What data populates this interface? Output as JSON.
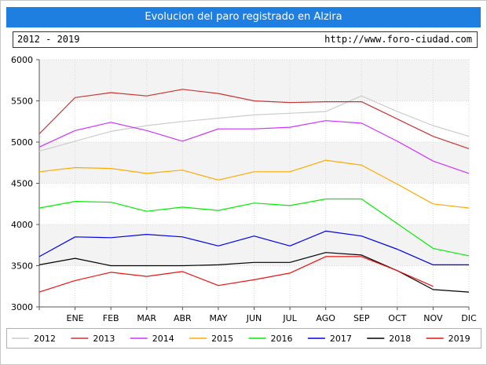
{
  "header": {
    "title": "Evolucion del paro registrado en Alzira",
    "period": "2012 - 2019",
    "url": "http://www.foro-ciudad.com"
  },
  "chart_data": {
    "type": "line",
    "title": "Evolucion del paro registrado en Alzira",
    "categories": [
      "",
      "ENE",
      "FEB",
      "MAR",
      "ABR",
      "MAY",
      "JUN",
      "JUL",
      "AGO",
      "SEP",
      "OCT",
      "NOV",
      "DIC"
    ],
    "ylim": [
      3000,
      6000
    ],
    "yticks": [
      3000,
      3500,
      4000,
      4500,
      5000,
      5500,
      6000
    ],
    "grid": true,
    "legend_position": "bottom",
    "series": [
      {
        "name": "2012",
        "color": "#cccccc",
        "values": [
          4890,
          5010,
          5130,
          5200,
          5250,
          5290,
          5330,
          5350,
          5370,
          5560,
          5370,
          5200,
          5070
        ]
      },
      {
        "name": "2013",
        "color": "#cc3333",
        "values": [
          5100,
          5540,
          5600,
          5560,
          5640,
          5590,
          5500,
          5480,
          5490,
          5490,
          5280,
          5070,
          4920
        ]
      },
      {
        "name": "2014",
        "color": "#cc33ff",
        "values": [
          4940,
          5140,
          5240,
          5140,
          5010,
          5160,
          5160,
          5180,
          5260,
          5230,
          5010,
          4770,
          4620
        ]
      },
      {
        "name": "2015",
        "color": "#ffaa00",
        "values": [
          4640,
          4690,
          4680,
          4620,
          4660,
          4540,
          4640,
          4640,
          4780,
          4720,
          4490,
          4250,
          4200
        ]
      },
      {
        "name": "2016",
        "color": "#00ee00",
        "values": [
          4200,
          4280,
          4270,
          4160,
          4210,
          4170,
          4260,
          4230,
          4310,
          4310,
          4010,
          3710,
          3620
        ]
      },
      {
        "name": "2017",
        "color": "#0000ee",
        "values": [
          3610,
          3850,
          3840,
          3880,
          3850,
          3740,
          3860,
          3740,
          3920,
          3860,
          3700,
          3510,
          3510
        ]
      },
      {
        "name": "2018",
        "color": "#000000",
        "values": [
          3510,
          3590,
          3500,
          3500,
          3500,
          3510,
          3540,
          3540,
          3660,
          3630,
          3440,
          3210,
          3180
        ]
      },
      {
        "name": "2019",
        "color": "#ee1111",
        "values": [
          3180,
          3320,
          3420,
          3370,
          3430,
          3260,
          3330,
          3410,
          3610,
          3610,
          3440,
          3250,
          null
        ]
      }
    ]
  }
}
